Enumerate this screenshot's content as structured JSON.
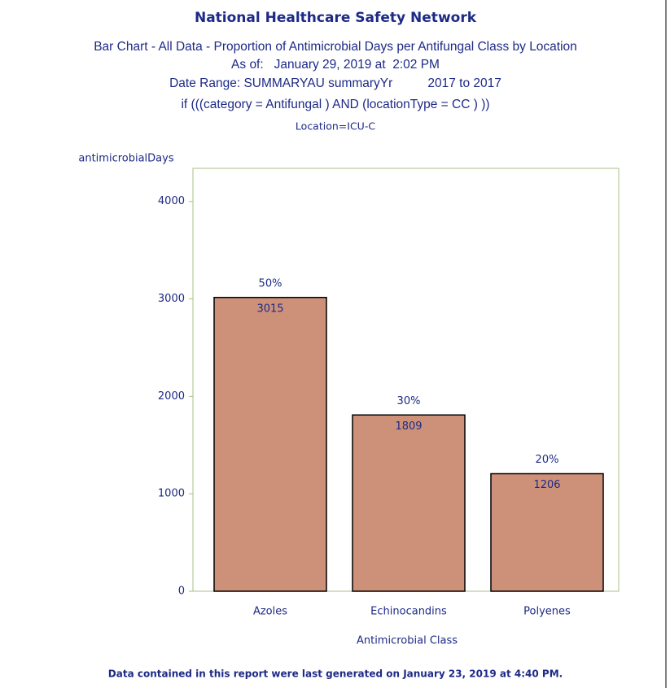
{
  "chart_data": {
    "type": "bar",
    "title": "National Healthcare Safety Network",
    "subtitles": [
      "Bar Chart - All Data - Proportion of Antimicrobial Days per Antifungal Class by Location",
      "As of:   January 29, 2019 at  2:02 PM",
      "Date Range: SUMMARYAU summaryYr          2017 to 2017",
      "if (((category = Antifungal ) AND (locationType = CC ) ))"
    ],
    "location": "Location=ICU-C",
    "y_label": "antimicrobialDays",
    "x_label": "Antimicrobial Class",
    "categories": [
      "Azoles",
      "Echinocandins",
      "Polyenes"
    ],
    "values": [
      3015,
      1809,
      1206
    ],
    "percentages": {
      "values": [
        50,
        30,
        20
      ],
      "value_labels": [
        "50%",
        "30%",
        "20%"
      ]
    },
    "color": "#cd917a",
    "ylim": [
      0,
      4340
    ],
    "yticks": [
      0,
      1000,
      2000,
      3000,
      4000
    ],
    "grid": false,
    "footnote": "Data contained in this report were last generated on January 23, 2019 at 4:40 PM."
  }
}
